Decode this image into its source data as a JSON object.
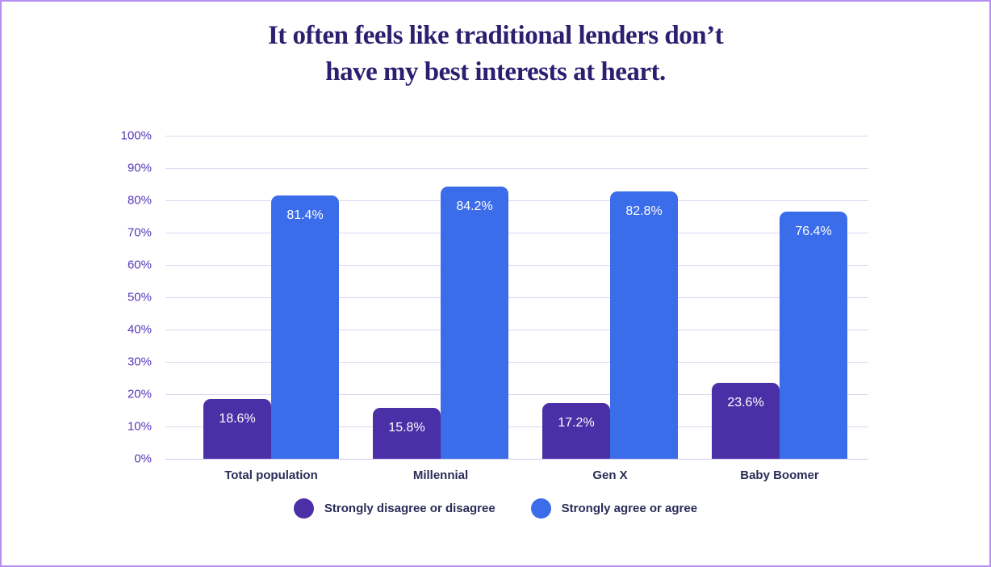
{
  "title": {
    "line1": "It often feels like traditional lenders don’t",
    "line2": "have my best interests at heart."
  },
  "colors": {
    "title_text": "#2d1f70",
    "axis_tick_text": "#5637b8",
    "category_text": "#2b2b58",
    "gridline": "#ddd7f3",
    "page_border": "#b58ff3",
    "bar_value_text": "#ffffff"
  },
  "chart_data": {
    "type": "bar",
    "title": "It often feels like traditional lenders don’t have my best interests at heart.",
    "categories": [
      "Total population",
      "Millennial",
      "Gen X",
      "Baby Boomer"
    ],
    "series": [
      {
        "name": "Strongly disagree or disagree",
        "color": "#4b2fa6",
        "values": [
          18.6,
          15.8,
          17.2,
          23.6
        ],
        "labels": [
          "18.6%",
          "15.8%",
          "17.2%",
          "23.6%"
        ]
      },
      {
        "name": "Strongly agree or agree",
        "color": "#3b6ce9",
        "values": [
          81.4,
          84.2,
          82.8,
          76.4
        ],
        "labels": [
          "81.4%",
          "84.2%",
          "82.8%",
          "76.4%"
        ]
      }
    ],
    "y_axis": {
      "min": 0,
      "max": 100,
      "step": 10,
      "tick_labels": [
        "0%",
        "10%",
        "20%",
        "30%",
        "40%",
        "50%",
        "60%",
        "70%",
        "80%",
        "90%",
        "100%"
      ]
    },
    "grid": true,
    "legend_position": "bottom"
  }
}
